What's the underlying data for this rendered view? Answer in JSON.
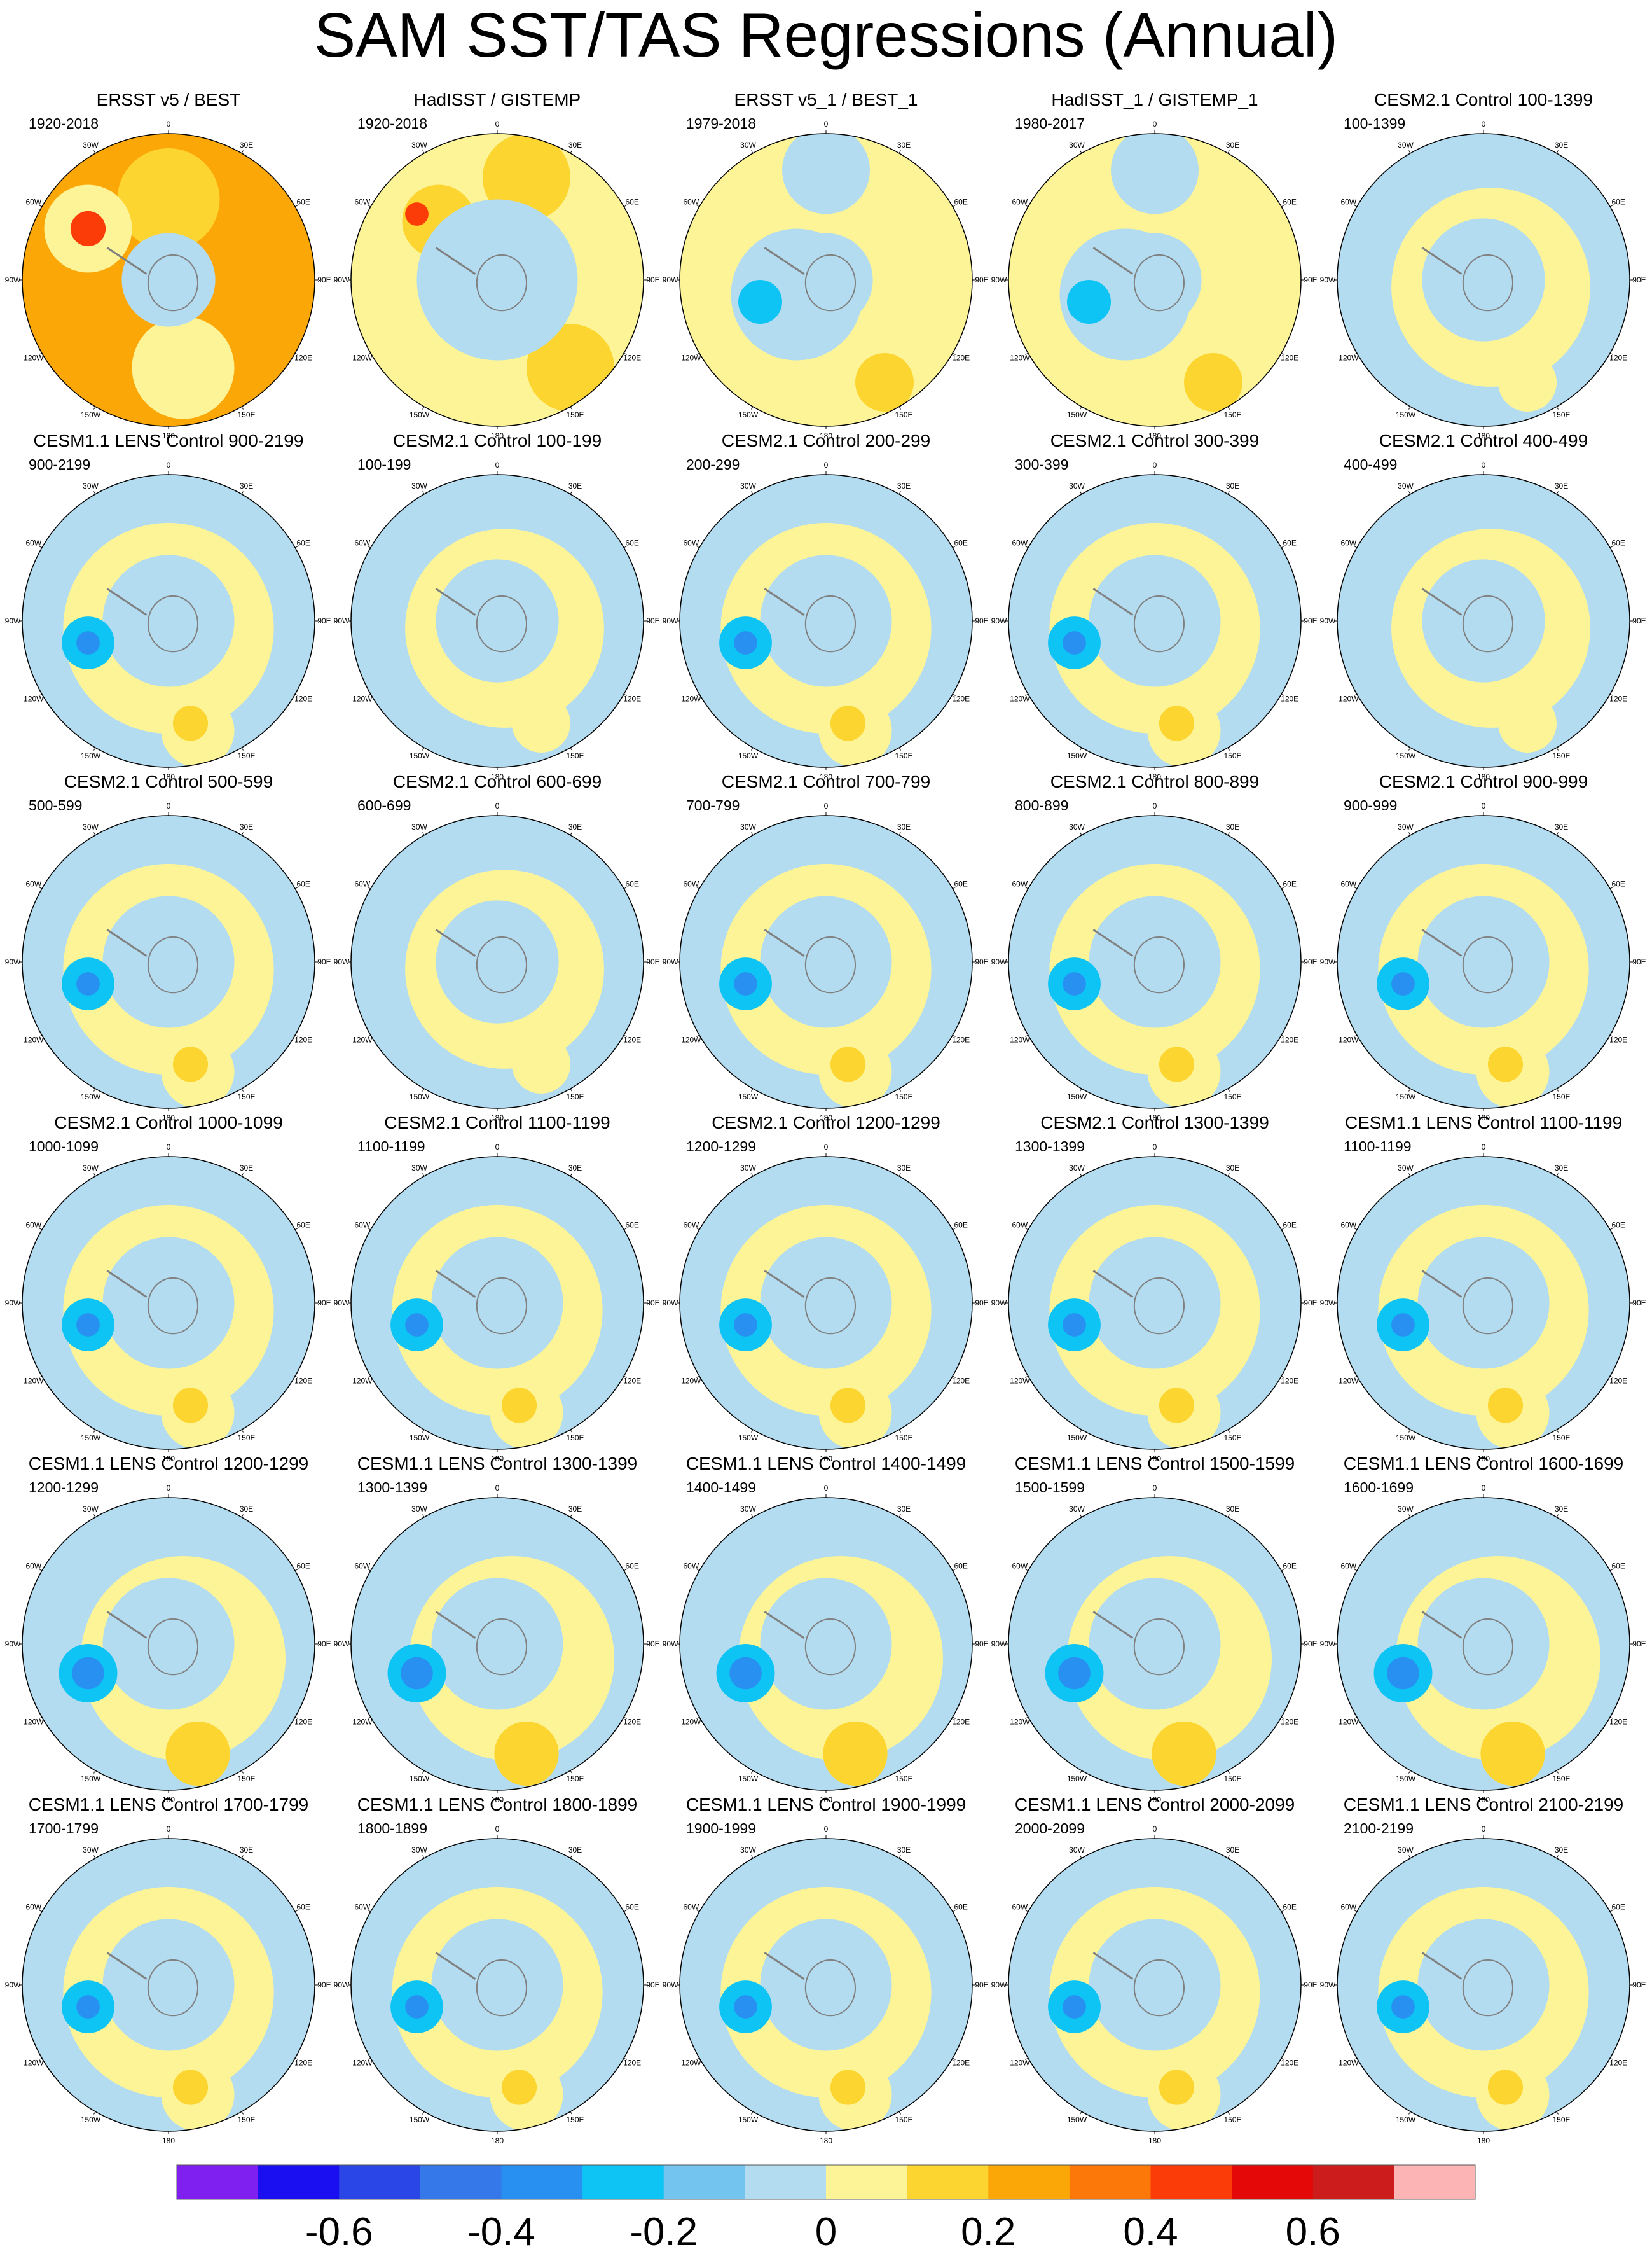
{
  "title": "SAM SST/TAS Regressions (Annual)",
  "lon_labels": [
    "0",
    "30E",
    "60E",
    "90E",
    "120E",
    "150E",
    "180",
    "150W",
    "120W",
    "90W",
    "60W",
    "30W"
  ],
  "palette": {
    "ocean_light_blue": "#b3dcf0",
    "land_outline": "#808080"
  },
  "panels": [
    {
      "title": "ERSST v5 / BEST",
      "period": "1920-2018"
    },
    {
      "title": "HadISST / GISTEMP",
      "period": "1920-2018"
    },
    {
      "title": "ERSST v5_1 / BEST_1",
      "period": "1979-2018"
    },
    {
      "title": "HadISST_1 / GISTEMP_1",
      "period": "1980-2017"
    },
    {
      "title": "CESM2.1 Control 100-1399",
      "period": "100-1399"
    },
    {
      "title": "CESM1.1 LENS Control 900-2199",
      "period": "900-2199"
    },
    {
      "title": "CESM2.1 Control 100-199",
      "period": "100-199"
    },
    {
      "title": "CESM2.1 Control 200-299",
      "period": "200-299"
    },
    {
      "title": "CESM2.1 Control 300-399",
      "period": "300-399"
    },
    {
      "title": "CESM2.1 Control 400-499",
      "period": "400-499"
    },
    {
      "title": "CESM2.1 Control 500-599",
      "period": "500-599"
    },
    {
      "title": "CESM2.1 Control 600-699",
      "period": "600-699"
    },
    {
      "title": "CESM2.1 Control 700-799",
      "period": "700-799"
    },
    {
      "title": "CESM2.1 Control 800-899",
      "period": "800-899"
    },
    {
      "title": "CESM2.1 Control 900-999",
      "period": "900-999"
    },
    {
      "title": "CESM2.1 Control 1000-1099",
      "period": "1000-1099"
    },
    {
      "title": "CESM2.1 Control 1100-1199",
      "period": "1100-1199"
    },
    {
      "title": "CESM2.1 Control 1200-1299",
      "period": "1200-1299"
    },
    {
      "title": "CESM2.1 Control 1300-1399",
      "period": "1300-1399"
    },
    {
      "title": "CESM1.1 LENS Control 1100-1199",
      "period": "1100-1199"
    },
    {
      "title": "CESM1.1 LENS Control 1200-1299",
      "period": "1200-1299"
    },
    {
      "title": "CESM1.1 LENS Control 1300-1399",
      "period": "1300-1399"
    },
    {
      "title": "CESM1.1 LENS Control 1400-1499",
      "period": "1400-1499"
    },
    {
      "title": "CESM1.1 LENS Control 1500-1599",
      "period": "1500-1599"
    },
    {
      "title": "CESM1.1 LENS Control 1600-1699",
      "period": "1600-1699"
    },
    {
      "title": "CESM1.1 LENS Control 1700-1799",
      "period": "1700-1799"
    },
    {
      "title": "CESM1.1 LENS Control 1800-1899",
      "period": "1800-1899"
    },
    {
      "title": "CESM1.1 LENS Control 1900-1999",
      "period": "1900-1999"
    },
    {
      "title": "CESM1.1 LENS Control 2000-2099",
      "period": "2000-2099"
    },
    {
      "title": "CESM1.1 LENS Control 2100-2199",
      "period": "2100-2199"
    }
  ],
  "chart_data": {
    "type": "heatmap",
    "title": "SAM SST/TAS Regressions (Annual)",
    "projection": "south polar stereographic",
    "colorbar": {
      "levels": [
        -0.7,
        -0.6,
        -0.5,
        -0.4,
        -0.3,
        -0.2,
        -0.1,
        0,
        0.1,
        0.2,
        0.3,
        0.4,
        0.5,
        0.6,
        0.7
      ],
      "tick_values": [
        -0.6,
        -0.4,
        -0.2,
        0,
        0.2,
        0.4,
        0.6
      ],
      "tick_labels": [
        "-0.6",
        "-0.4",
        "-0.2",
        "0",
        "0.2",
        "0.4",
        "0.6"
      ],
      "colors": [
        "#8020f0",
        "#1a0ff0",
        "#2a46e6",
        "#3478ea",
        "#2890f0",
        "#0ec4f4",
        "#73c4ee",
        "#b3dcf0",
        "#fcf497",
        "#fcd530",
        "#fca708",
        "#fc7809",
        "#fc3c08",
        "#e40808",
        "#cc1c1c",
        "#fcb4b4"
      ]
    }
  }
}
